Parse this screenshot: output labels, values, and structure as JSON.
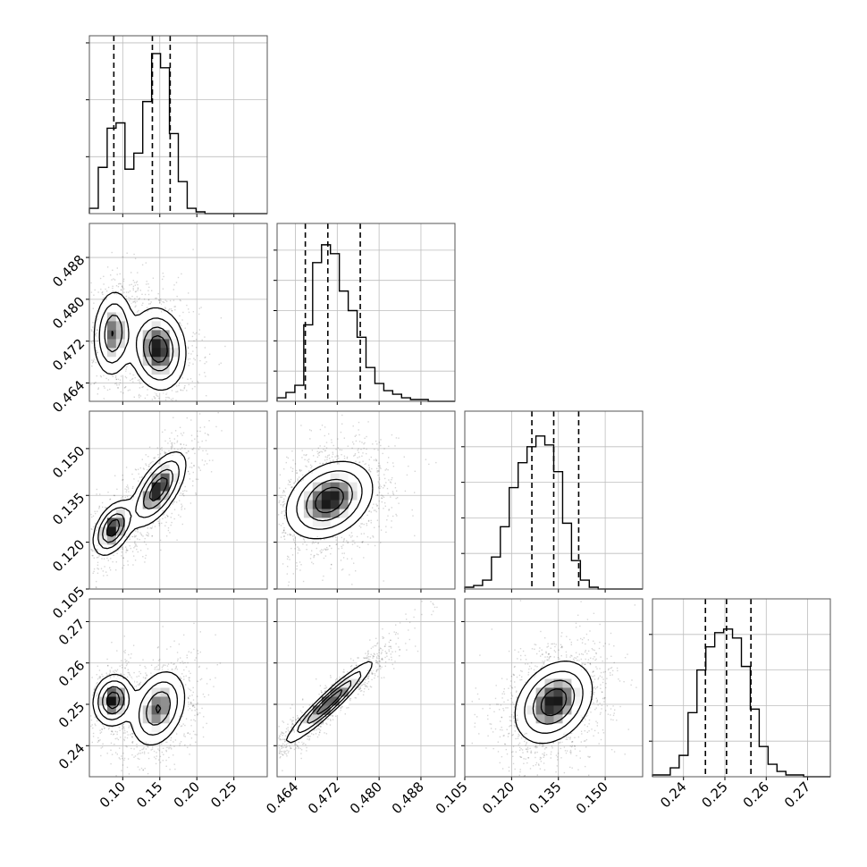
{
  "chart_data": {
    "type": "corner",
    "grid": true,
    "parameters": [
      {
        "range": [
          0.055,
          0.295
        ],
        "ticks": [
          0.1,
          0.15,
          0.2,
          0.25
        ],
        "tick_labels": [
          "0.10",
          "0.15",
          "0.20",
          "0.25"
        ],
        "quantiles": [
          0.088,
          0.14,
          0.164
        ],
        "hist_max": 1.0,
        "hist_ticks": [
          0.32,
          0.64,
          0.96
        ],
        "hist_bins": [
          0.03,
          0.26,
          0.48,
          0.51,
          0.25,
          0.34,
          0.63,
          0.9,
          0.82,
          0.45,
          0.18,
          0.03,
          0.01,
          0,
          0,
          0,
          0,
          0,
          0,
          0
        ]
      },
      {
        "range": [
          0.4605,
          0.4945
        ],
        "ticks": [
          0.464,
          0.472,
          0.48,
          0.488
        ],
        "tick_labels": [
          "0.464",
          "0.472",
          "0.480",
          "0.488"
        ],
        "quantiles": [
          0.4659,
          0.4702,
          0.4764
        ],
        "hist_max": 1.0,
        "hist_ticks": [
          0.17,
          0.34,
          0.51,
          0.68,
          0.85
        ],
        "hist_bins": [
          0.02,
          0.05,
          0.09,
          0.43,
          0.78,
          0.88,
          0.83,
          0.62,
          0.51,
          0.36,
          0.19,
          0.1,
          0.06,
          0.04,
          0.02,
          0.01,
          0.01,
          0,
          0,
          0
        ]
      },
      {
        "range": [
          0.105,
          0.162
        ],
        "ticks": [
          0.105,
          0.12,
          0.135,
          0.15
        ],
        "tick_labels": [
          "0.105",
          "0.120",
          "0.135",
          "0.150"
        ],
        "quantiles": [
          0.1265,
          0.1335,
          0.1415
        ],
        "hist_max": 1.0,
        "hist_ticks": [
          0.2,
          0.4,
          0.6,
          0.8
        ],
        "hist_bins": [
          0.01,
          0.02,
          0.05,
          0.18,
          0.35,
          0.57,
          0.71,
          0.8,
          0.86,
          0.81,
          0.66,
          0.37,
          0.16,
          0.05,
          0.01,
          0,
          0,
          0,
          0,
          0
        ]
      },
      {
        "range": [
          0.2325,
          0.2755
        ],
        "ticks": [
          0.24,
          0.25,
          0.26,
          0.27
        ],
        "tick_labels": [
          "0.24",
          "0.25",
          "0.26",
          "0.27"
        ],
        "quantiles": [
          0.2453,
          0.2504,
          0.2563
        ],
        "hist_max": 1.0,
        "hist_ticks": [
          0.2,
          0.4,
          0.6,
          0.8
        ],
        "hist_bins": [
          0.01,
          0.01,
          0.05,
          0.12,
          0.36,
          0.6,
          0.73,
          0.81,
          0.83,
          0.78,
          0.62,
          0.38,
          0.17,
          0.07,
          0.03,
          0.01,
          0.01,
          0,
          0,
          0
        ]
      }
    ],
    "blobs": {
      "1,0": [
        {
          "mx": 0.087,
          "my": 0.4735,
          "sx": 0.013,
          "sy": 0.004,
          "rho": 0.1,
          "w": 0.38
        },
        {
          "mx": 0.148,
          "my": 0.4705,
          "sx": 0.018,
          "sy": 0.0038,
          "rho": -0.1,
          "w": 0.62
        }
      ],
      "2,0": [
        {
          "mx": 0.087,
          "my": 0.1245,
          "sx": 0.013,
          "sy": 0.0042,
          "rho": 0.45,
          "w": 0.38
        },
        {
          "mx": 0.148,
          "my": 0.137,
          "sx": 0.018,
          "sy": 0.0058,
          "rho": 0.65,
          "w": 0.62
        }
      ],
      "2,1": [
        {
          "mx": 0.4705,
          "my": 0.1335,
          "sx": 0.004,
          "sy": 0.006,
          "rho": 0.3,
          "w": 1.0
        }
      ],
      "3,0": [
        {
          "mx": 0.087,
          "my": 0.251,
          "sx": 0.013,
          "sy": 0.003,
          "rho": 0.1,
          "w": 0.38
        },
        {
          "mx": 0.148,
          "my": 0.249,
          "sx": 0.018,
          "sy": 0.0045,
          "rho": 0.3,
          "w": 0.62
        }
      ],
      "3,1": [
        {
          "mx": 0.4705,
          "my": 0.2505,
          "sx": 0.004,
          "sy": 0.0048,
          "rho": 0.95,
          "w": 1.0
        }
      ],
      "3,2": [
        {
          "mx": 0.1335,
          "my": 0.2505,
          "sx": 0.006,
          "sy": 0.0048,
          "rho": 0.3,
          "w": 1.0
        }
      ]
    }
  }
}
